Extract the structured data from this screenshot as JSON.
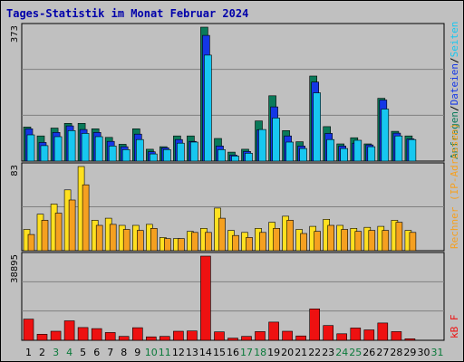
{
  "title": "Tages-Statistik im Monat Februar 2024",
  "colors": {
    "background": "#c0c0c0",
    "title": "#0000aa",
    "anfragen": "#0a7a5a",
    "dateien": "#1436e6",
    "seiten": "#17c7f0",
    "besuche": "#f5a020",
    "rechner": "#ffe020",
    "kb": "#ee1111",
    "weekend_label": "#0a7a3a",
    "weekday_label": "#000000"
  },
  "panels": {
    "top": {
      "ymax_label": "373",
      "legend": [
        {
          "text": "Anfragen",
          "color": "#0a7a5a"
        },
        {
          "text": "/",
          "color": "#000000"
        },
        {
          "text": "Dateien",
          "color": "#1436e6"
        },
        {
          "text": "/",
          "color": "#000000"
        },
        {
          "text": "Seiten",
          "color": "#17c7f0"
        }
      ]
    },
    "mid": {
      "ymax_label": "83",
      "legend": [
        {
          "text": "Rechner",
          "color": "#f5a020"
        },
        {
          "text": "(IP-Adressen)",
          "color": "#f5a020"
        }
      ]
    },
    "bot": {
      "ymax_label": "38895",
      "legend": [
        {
          "text": "kB F",
          "color": "#ee1111"
        }
      ]
    }
  },
  "chart_data": [
    {
      "type": "bar",
      "panel": "top",
      "categories": [
        "1",
        "2",
        "3",
        "4",
        "5",
        "6",
        "7",
        "8",
        "9",
        "10",
        "11",
        "12",
        "13",
        "14",
        "15",
        "16",
        "17",
        "18",
        "19",
        "20",
        "21",
        "22",
        "23",
        "24",
        "25",
        "26",
        "27",
        "28",
        "29",
        "30",
        "31"
      ],
      "ylim": [
        0,
        373
      ],
      "series": [
        {
          "name": "Anfragen",
          "values": [
            95,
            70,
            92,
            105,
            105,
            90,
            66,
            47,
            90,
            33,
            40,
            70,
            70,
            373,
            63,
            25,
            33,
            112,
            182,
            85,
            54,
            237,
            96,
            48,
            65,
            48,
            175,
            83,
            70,
            0,
            0
          ]
        },
        {
          "name": "Dateien",
          "values": [
            90,
            52,
            80,
            98,
            88,
            80,
            55,
            40,
            75,
            26,
            37,
            60,
            55,
            350,
            42,
            17,
            27,
            87,
            151,
            70,
            42,
            220,
            77,
            42,
            50,
            45,
            170,
            78,
            62,
            0,
            0
          ]
        },
        {
          "name": "Seiten",
          "values": [
            73,
            43,
            68,
            85,
            77,
            68,
            42,
            32,
            60,
            20,
            32,
            50,
            53,
            295,
            32,
            14,
            22,
            88,
            120,
            53,
            35,
            190,
            60,
            35,
            58,
            40,
            145,
            70,
            60,
            0,
            0
          ]
        }
      ]
    },
    {
      "type": "bar",
      "panel": "mid",
      "categories": [
        "1",
        "2",
        "3",
        "4",
        "5",
        "6",
        "7",
        "8",
        "9",
        "10",
        "11",
        "12",
        "13",
        "14",
        "15",
        "16",
        "17",
        "18",
        "19",
        "20",
        "21",
        "22",
        "23",
        "24",
        "25",
        "26",
        "27",
        "28",
        "29",
        "30",
        "31"
      ],
      "ylim": [
        0,
        83
      ],
      "series": [
        {
          "name": "Besuche",
          "values": [
            21,
            36,
            46,
            60,
            83,
            30,
            32,
            25,
            25,
            26,
            13,
            12,
            19,
            22,
            42,
            20,
            18,
            22,
            28,
            34,
            21,
            24,
            31,
            25,
            22,
            23,
            24,
            30,
            20,
            0,
            0
          ]
        },
        {
          "name": "Rechner",
          "values": [
            16,
            30,
            37,
            50,
            65,
            25,
            26,
            21,
            20,
            22,
            12,
            12,
            18,
            18,
            32,
            15,
            13,
            18,
            22,
            30,
            17,
            19,
            25,
            21,
            19,
            20,
            20,
            28,
            18,
            0,
            0
          ]
        }
      ]
    },
    {
      "type": "bar",
      "panel": "bot",
      "categories": [
        "1",
        "2",
        "3",
        "4",
        "5",
        "6",
        "7",
        "8",
        "9",
        "10",
        "11",
        "12",
        "13",
        "14",
        "15",
        "16",
        "17",
        "18",
        "19",
        "20",
        "21",
        "22",
        "23",
        "24",
        "25",
        "26",
        "27",
        "28",
        "29",
        "30",
        "31"
      ],
      "ylim": [
        0,
        38895
      ],
      "series": [
        {
          "name": "kB F",
          "values": [
            9800,
            2800,
            4200,
            9000,
            5900,
            5400,
            3600,
            1800,
            5800,
            1600,
            1800,
            4200,
            4300,
            38895,
            3900,
            1000,
            1800,
            4000,
            8400,
            4200,
            2000,
            14500,
            6800,
            3000,
            5700,
            4800,
            8000,
            4000,
            700,
            0,
            0
          ]
        }
      ]
    }
  ],
  "weekends": [
    3,
    4,
    10,
    11,
    17,
    18,
    24,
    25,
    31
  ]
}
